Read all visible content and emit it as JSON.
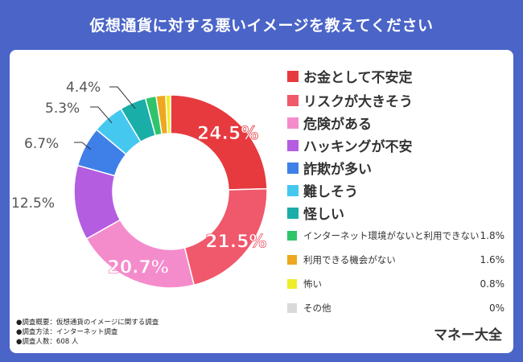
{
  "header": {
    "title": "仮想通貨に対する悪いイメージを教えてください"
  },
  "chart_data": {
    "type": "pie",
    "categories": [
      "お金として不安定",
      "リスクが大きそう",
      "危険がある",
      "ハッキングが不安",
      "詐欺が多い",
      "難しそう",
      "怪しい",
      "インターネット環境がないと利用できない",
      "利用できる機会がない",
      "怖い",
      "その他"
    ],
    "values": [
      24.5,
      21.5,
      20.7,
      12.5,
      6.7,
      5.3,
      4.4,
      1.8,
      1.6,
      0.8,
      0
    ],
    "value_labels": [
      "24.5%",
      "21.5%",
      "20.7%",
      "12.5%",
      "6.7%",
      "5.3%",
      "4.4%",
      "1.8%",
      "1.6%",
      "0.8%",
      "0%"
    ],
    "colors": [
      "#e63a3f",
      "#f0586b",
      "#f48ccc",
      "#b45de0",
      "#3f7fe8",
      "#45c8f0",
      "#1aaea8",
      "#2fc46c",
      "#eda820",
      "#eeee2a",
      "#d9d9d9"
    ],
    "legend_placement": "right"
  },
  "notes": [
    "●調査概要：仮想通貨のイメージに関する調査",
    "●調査方法：インターネット調査",
    "●調査人数：608 人"
  ],
  "brand": "マネー大全"
}
